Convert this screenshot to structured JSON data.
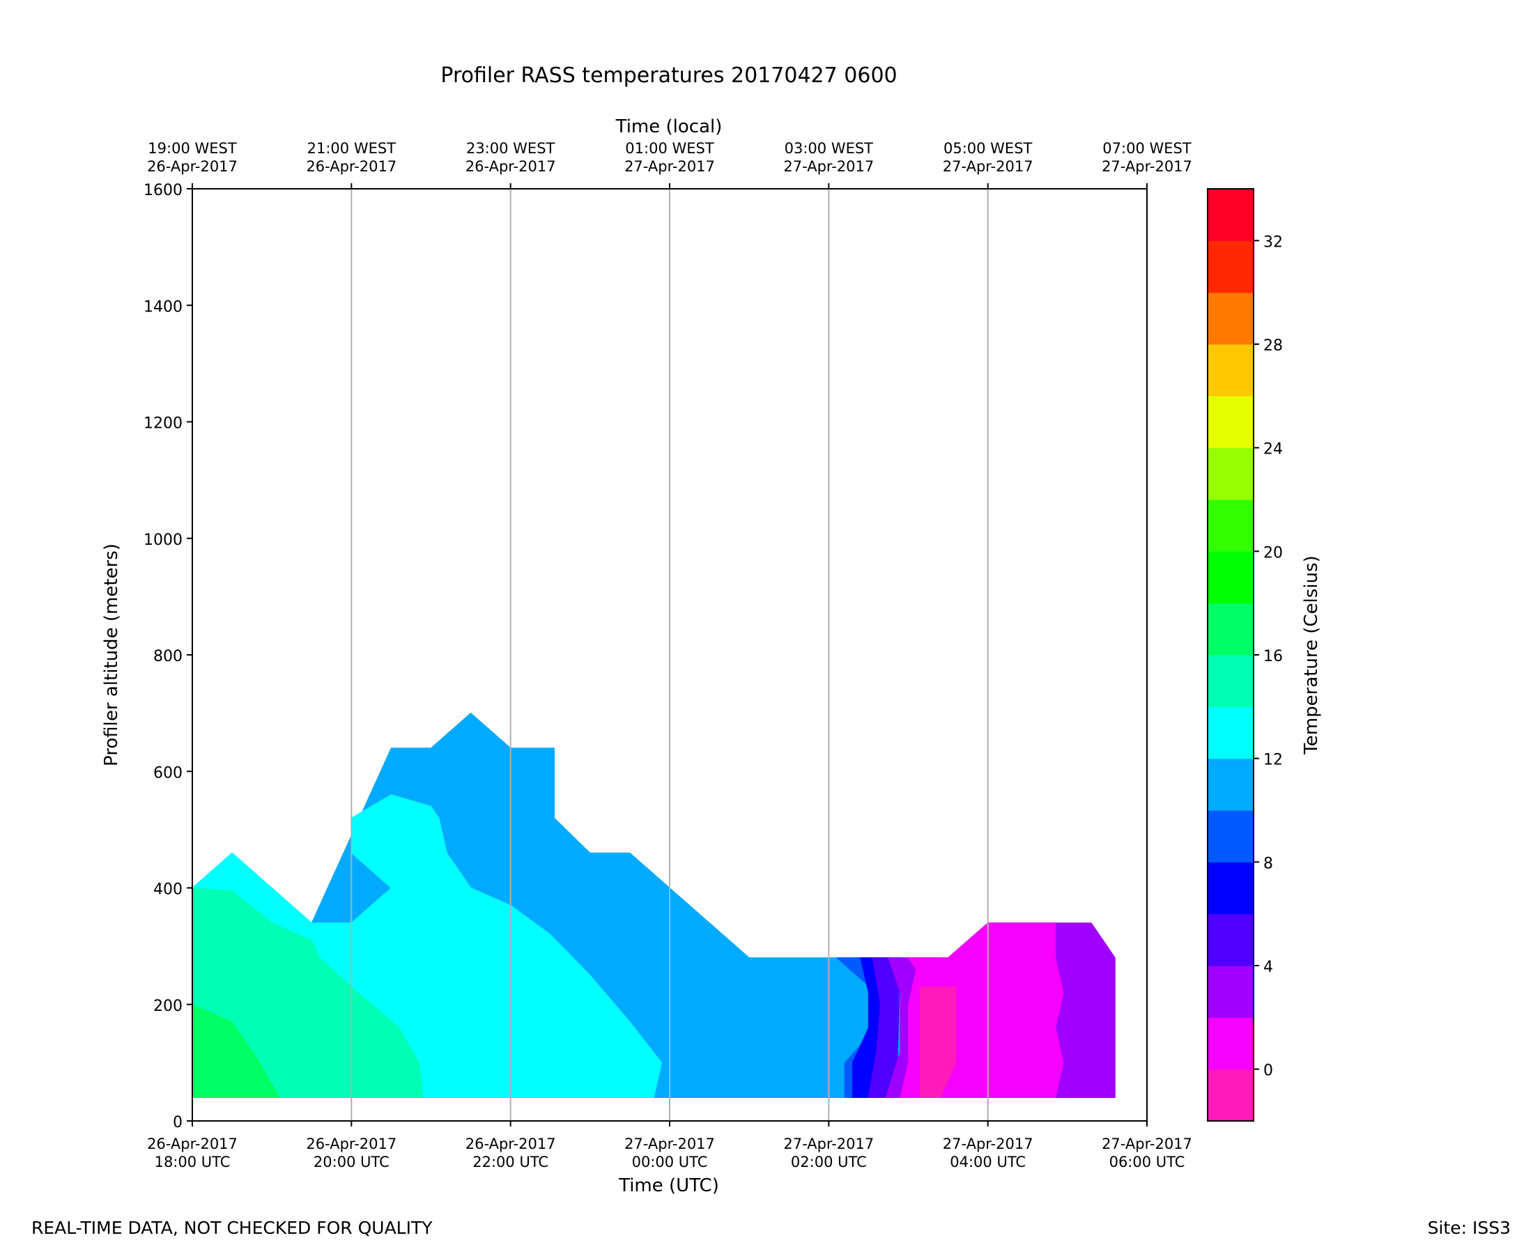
{
  "chart_data": {
    "type": "contour",
    "title": "Profiler RASS temperatures 20170427 0600",
    "xlabel": "Time (UTC)",
    "top_xlabel": "Time (local)",
    "ylabel": "Profiler altitude (meters)",
    "colorbar_label": "Temperature (Celsius)",
    "ylim": [
      0,
      1600
    ],
    "y_ticks": [
      "0",
      "200",
      "400",
      "600",
      "800",
      "1000",
      "1200",
      "1400",
      "1600"
    ],
    "x_ticks": [
      {
        "line1": "26-Apr-2017",
        "line2": "18:00 UTC"
      },
      {
        "line1": "26-Apr-2017",
        "line2": "20:00 UTC"
      },
      {
        "line1": "26-Apr-2017",
        "line2": "22:00 UTC"
      },
      {
        "line1": "27-Apr-2017",
        "line2": "00:00 UTC"
      },
      {
        "line1": "27-Apr-2017",
        "line2": "02:00 UTC"
      },
      {
        "line1": "27-Apr-2017",
        "line2": "04:00 UTC"
      },
      {
        "line1": "27-Apr-2017",
        "line2": "06:00 UTC"
      }
    ],
    "top_x_ticks": [
      {
        "line1": "19:00 WEST",
        "line2": "26-Apr-2017"
      },
      {
        "line1": "21:00 WEST",
        "line2": "26-Apr-2017"
      },
      {
        "line1": "23:00 WEST",
        "line2": "26-Apr-2017"
      },
      {
        "line1": "01:00 WEST",
        "line2": "27-Apr-2017"
      },
      {
        "line1": "03:00 WEST",
        "line2": "27-Apr-2017"
      },
      {
        "line1": "05:00 WEST",
        "line2": "27-Apr-2017"
      },
      {
        "line1": "07:00 WEST",
        "line2": "27-Apr-2017"
      }
    ],
    "grid": "vertical",
    "colorbar": {
      "levels": [
        -2,
        0,
        2,
        4,
        6,
        8,
        10,
        12,
        14,
        16,
        18,
        20,
        22,
        24,
        26,
        28,
        30,
        32,
        34
      ],
      "colors": [
        "#ff1ab9",
        "#f600ff",
        "#a000ff",
        "#5000ff",
        "#0000ff",
        "#005aff",
        "#00aaff",
        "#00ffff",
        "#00ffb4",
        "#00ff64",
        "#00ff00",
        "#32ff00",
        "#96ff00",
        "#e6ff00",
        "#ffc800",
        "#ff7800",
        "#ff2800",
        "#ff0028"
      ],
      "tick_values": [
        0,
        4,
        8,
        12,
        16,
        20,
        24,
        28,
        32
      ],
      "tick_labels": [
        "0",
        "4",
        "8",
        "12",
        "16",
        "20",
        "24",
        "28",
        "32"
      ]
    },
    "contour_regions": [
      {
        "level": "10-12",
        "color": "#00aaff",
        "points": [
          [
            0.0,
            400
          ],
          [
            0.5,
            460
          ],
          [
            1.5,
            340
          ],
          [
            2.5,
            640
          ],
          [
            3.0,
            640
          ],
          [
            3.5,
            700
          ],
          [
            4.0,
            640
          ],
          [
            4.55,
            640
          ],
          [
            4.55,
            520
          ],
          [
            5.0,
            460
          ],
          [
            5.5,
            460
          ],
          [
            7.0,
            280
          ],
          [
            9.4,
            280
          ],
          [
            9.4,
            40
          ],
          [
            0.0,
            40
          ]
        ]
      },
      {
        "level": "12-14",
        "color": "#00ffff",
        "points": [
          [
            0.0,
            400
          ],
          [
            0.5,
            460
          ],
          [
            1.5,
            340
          ],
          [
            2.0,
            340
          ],
          [
            2.5,
            400
          ],
          [
            2.0,
            460
          ],
          [
            2.0,
            520
          ],
          [
            2.5,
            560
          ],
          [
            3.0,
            540
          ],
          [
            3.1,
            520
          ],
          [
            3.2,
            460
          ],
          [
            3.5,
            400
          ],
          [
            4.0,
            370
          ],
          [
            4.5,
            320
          ],
          [
            5.0,
            250
          ],
          [
            5.5,
            170
          ],
          [
            5.9,
            100
          ],
          [
            5.8,
            40
          ],
          [
            0.0,
            40
          ]
        ]
      },
      {
        "level": "14-16",
        "color": "#00ffb4",
        "points": [
          [
            0.0,
            400
          ],
          [
            0.5,
            395
          ],
          [
            1.0,
            340
          ],
          [
            1.5,
            310
          ],
          [
            1.6,
            280
          ],
          [
            2.0,
            230
          ],
          [
            2.6,
            160
          ],
          [
            2.85,
            100
          ],
          [
            2.9,
            40
          ],
          [
            0.0,
            40
          ]
        ]
      },
      {
        "level": "16-18",
        "color": "#00ff64",
        "points": [
          [
            0.0,
            200
          ],
          [
            0.5,
            170
          ],
          [
            0.8,
            110
          ],
          [
            1.1,
            40
          ],
          [
            0.0,
            40
          ]
        ]
      },
      {
        "level": "8-10",
        "color": "#005aff",
        "points": [
          [
            8.1,
            280
          ],
          [
            8.65,
            280
          ],
          [
            8.65,
            40
          ],
          [
            8.2,
            40
          ],
          [
            8.2,
            100
          ],
          [
            8.6,
            160
          ],
          [
            8.6,
            220
          ]
        ]
      },
      {
        "level": "6-8",
        "color": "#0000ff",
        "points": [
          [
            8.4,
            280
          ],
          [
            8.75,
            280
          ],
          [
            8.72,
            40
          ],
          [
            8.3,
            40
          ],
          [
            8.3,
            100
          ],
          [
            8.5,
            160
          ],
          [
            8.5,
            220
          ]
        ]
      },
      {
        "level": "4-6",
        "color": "#5000ff",
        "points": [
          [
            8.55,
            280
          ],
          [
            8.9,
            280
          ],
          [
            8.85,
            40
          ],
          [
            8.5,
            40
          ],
          [
            8.6,
            120
          ],
          [
            8.65,
            200
          ]
        ]
      },
      {
        "level": "2-4",
        "color": "#a000ff",
        "points": [
          [
            8.75,
            280
          ],
          [
            9.5,
            280
          ],
          [
            10.0,
            340
          ],
          [
            11.3,
            340
          ],
          [
            11.6,
            280
          ],
          [
            11.6,
            40
          ],
          [
            8.72,
            40
          ],
          [
            8.9,
            120
          ],
          [
            8.9,
            220
          ]
        ]
      },
      {
        "level": "0-2",
        "color": "#f600ff",
        "points": [
          [
            9.0,
            280
          ],
          [
            9.5,
            280
          ],
          [
            10.0,
            340
          ],
          [
            10.85,
            340
          ],
          [
            10.85,
            280
          ],
          [
            10.95,
            220
          ],
          [
            10.85,
            160
          ],
          [
            10.95,
            100
          ],
          [
            10.85,
            40
          ],
          [
            8.9,
            40
          ],
          [
            9.0,
            100
          ],
          [
            9.0,
            200
          ],
          [
            9.1,
            260
          ]
        ]
      },
      {
        "level": "-2-0",
        "color": "#ff1ab9",
        "points": [
          [
            9.15,
            230
          ],
          [
            9.6,
            230
          ],
          [
            9.6,
            100
          ],
          [
            9.4,
            40
          ],
          [
            9.15,
            40
          ]
        ]
      }
    ],
    "footer_left": "REAL-TIME DATA, NOT CHECKED FOR QUALITY",
    "footer_right": "Site: ISS3"
  }
}
